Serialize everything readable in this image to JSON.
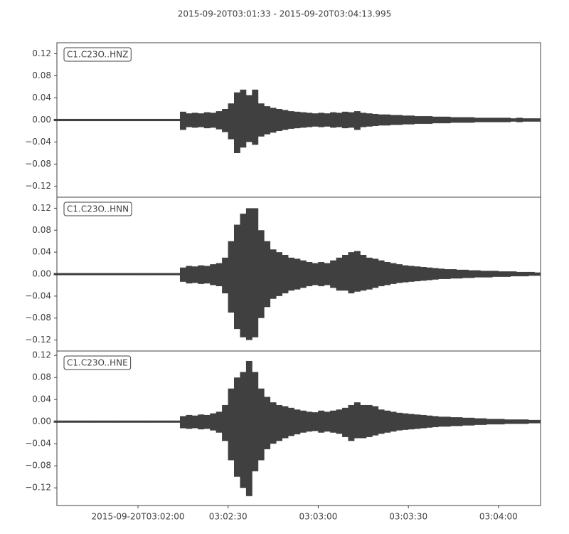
{
  "chart_data": {
    "type": "waveform",
    "title": "2015-09-20T03:01:33  -  2015-09-20T03:04:13.995",
    "color": "#404040",
    "xlim": [
      93,
      253.995
    ],
    "xticks": [
      {
        "value": 120,
        "label": "2015-09-20T03:02:00"
      },
      {
        "value": 150,
        "label": "03:02:30"
      },
      {
        "value": 180,
        "label": "03:03:00"
      },
      {
        "value": 210,
        "label": "03:03:30"
      },
      {
        "value": 240,
        "label": "03:04:00"
      }
    ],
    "yticks": [
      0.12,
      0.08,
      0.04,
      {
        "value": 0,
        "label": "0.00"
      },
      {
        "value": -0.04,
        "label": "−0.04"
      },
      {
        "value": -0.08,
        "label": "−0.08"
      },
      {
        "value": -0.12,
        "label": "−0.12"
      }
    ],
    "x": [
      93,
      95,
      97,
      99,
      101,
      103,
      105,
      107,
      109,
      111,
      113,
      115,
      117,
      119,
      121,
      123,
      125,
      127,
      129,
      131,
      133,
      135,
      137,
      139,
      141,
      143,
      145,
      147,
      149,
      151,
      153,
      155,
      157,
      159,
      161,
      163,
      165,
      167,
      169,
      171,
      173,
      175,
      177,
      179,
      181,
      183,
      185,
      187,
      189,
      191,
      193,
      195,
      197,
      199,
      201,
      203,
      205,
      207,
      209,
      211,
      213,
      215,
      217,
      219,
      221,
      223,
      225,
      227,
      229,
      231,
      233,
      235,
      237,
      239,
      241,
      243,
      245,
      247,
      249,
      251,
      253
    ],
    "traces": [
      {
        "name": "C1.C23O..HNZ",
        "ylim": [
          -0.14,
          0.14
        ],
        "max": [
          0.002,
          0.002,
          0.002,
          0.002,
          0.002,
          0.002,
          0.002,
          0.002,
          0.002,
          0.002,
          0.002,
          0.002,
          0.002,
          0.002,
          0.002,
          0.002,
          0.002,
          0.002,
          0.002,
          0.002,
          0.002,
          0.015,
          0.012,
          0.013,
          0.012,
          0.014,
          0.013,
          0.016,
          0.02,
          0.03,
          0.05,
          0.055,
          0.045,
          0.055,
          0.03,
          0.025,
          0.022,
          0.02,
          0.018,
          0.016,
          0.015,
          0.014,
          0.013,
          0.012,
          0.013,
          0.012,
          0.014,
          0.013,
          0.015,
          0.014,
          0.016,
          0.013,
          0.012,
          0.011,
          0.01,
          0.01,
          0.009,
          0.009,
          0.008,
          0.008,
          0.007,
          0.007,
          0.007,
          0.006,
          0.006,
          0.006,
          0.005,
          0.005,
          0.005,
          0.005,
          0.004,
          0.004,
          0.004,
          0.004,
          0.004,
          0.004,
          0.003,
          0.004,
          0.003,
          0.003,
          0.003
        ],
        "min": [
          -0.002,
          -0.002,
          -0.002,
          -0.002,
          -0.002,
          -0.002,
          -0.002,
          -0.002,
          -0.002,
          -0.002,
          -0.002,
          -0.002,
          -0.002,
          -0.002,
          -0.002,
          -0.002,
          -0.002,
          -0.002,
          -0.002,
          -0.002,
          -0.002,
          -0.018,
          -0.013,
          -0.014,
          -0.013,
          -0.015,
          -0.014,
          -0.017,
          -0.022,
          -0.035,
          -0.06,
          -0.05,
          -0.04,
          -0.045,
          -0.03,
          -0.026,
          -0.023,
          -0.02,
          -0.018,
          -0.016,
          -0.015,
          -0.014,
          -0.013,
          -0.012,
          -0.013,
          -0.012,
          -0.014,
          -0.013,
          -0.015,
          -0.014,
          -0.018,
          -0.013,
          -0.012,
          -0.011,
          -0.01,
          -0.01,
          -0.009,
          -0.009,
          -0.008,
          -0.008,
          -0.007,
          -0.007,
          -0.007,
          -0.006,
          -0.006,
          -0.006,
          -0.005,
          -0.005,
          -0.005,
          -0.005,
          -0.004,
          -0.004,
          -0.004,
          -0.004,
          -0.004,
          -0.004,
          -0.003,
          -0.004,
          -0.003,
          -0.003,
          -0.003
        ]
      },
      {
        "name": "C1.C23O..HNN",
        "ylim": [
          -0.14,
          0.14
        ],
        "max": [
          0.002,
          0.002,
          0.002,
          0.002,
          0.002,
          0.002,
          0.002,
          0.002,
          0.002,
          0.002,
          0.002,
          0.002,
          0.002,
          0.002,
          0.002,
          0.002,
          0.002,
          0.002,
          0.002,
          0.002,
          0.002,
          0.012,
          0.015,
          0.014,
          0.016,
          0.015,
          0.018,
          0.02,
          0.03,
          0.06,
          0.09,
          0.11,
          0.12,
          0.12,
          0.08,
          0.06,
          0.045,
          0.04,
          0.035,
          0.03,
          0.028,
          0.025,
          0.022,
          0.02,
          0.022,
          0.02,
          0.025,
          0.03,
          0.035,
          0.04,
          0.042,
          0.035,
          0.03,
          0.028,
          0.025,
          0.022,
          0.02,
          0.018,
          0.016,
          0.015,
          0.014,
          0.013,
          0.012,
          0.011,
          0.01,
          0.009,
          0.009,
          0.008,
          0.008,
          0.007,
          0.007,
          0.006,
          0.006,
          0.006,
          0.005,
          0.005,
          0.005,
          0.004,
          0.004,
          0.004,
          0.003
        ],
        "min": [
          -0.002,
          -0.002,
          -0.002,
          -0.002,
          -0.002,
          -0.002,
          -0.002,
          -0.002,
          -0.002,
          -0.002,
          -0.002,
          -0.002,
          -0.002,
          -0.002,
          -0.002,
          -0.002,
          -0.002,
          -0.002,
          -0.002,
          -0.002,
          -0.002,
          -0.014,
          -0.017,
          -0.016,
          -0.018,
          -0.017,
          -0.02,
          -0.022,
          -0.035,
          -0.07,
          -0.1,
          -0.115,
          -0.12,
          -0.115,
          -0.08,
          -0.06,
          -0.045,
          -0.04,
          -0.035,
          -0.03,
          -0.028,
          -0.025,
          -0.022,
          -0.02,
          -0.022,
          -0.02,
          -0.025,
          -0.03,
          -0.03,
          -0.035,
          -0.032,
          -0.03,
          -0.028,
          -0.025,
          -0.022,
          -0.02,
          -0.018,
          -0.016,
          -0.015,
          -0.014,
          -0.013,
          -0.012,
          -0.011,
          -0.01,
          -0.009,
          -0.009,
          -0.008,
          -0.008,
          -0.007,
          -0.007,
          -0.006,
          -0.006,
          -0.006,
          -0.005,
          -0.005,
          -0.005,
          -0.004,
          -0.004,
          -0.004,
          -0.003,
          -0.003
        ]
      },
      {
        "name": "C1.C23O..HNE",
        "ylim": [
          -0.152,
          0.128
        ],
        "max": [
          0.002,
          0.002,
          0.002,
          0.002,
          0.002,
          0.002,
          0.002,
          0.002,
          0.002,
          0.002,
          0.002,
          0.002,
          0.002,
          0.002,
          0.002,
          0.002,
          0.002,
          0.002,
          0.002,
          0.002,
          0.002,
          0.01,
          0.012,
          0.011,
          0.013,
          0.012,
          0.015,
          0.018,
          0.03,
          0.06,
          0.08,
          0.09,
          0.11,
          0.09,
          0.06,
          0.045,
          0.035,
          0.03,
          0.028,
          0.025,
          0.022,
          0.02,
          0.018,
          0.017,
          0.02,
          0.018,
          0.02,
          0.022,
          0.025,
          0.03,
          0.035,
          0.03,
          0.03,
          0.028,
          0.022,
          0.02,
          0.018,
          0.016,
          0.015,
          0.014,
          0.013,
          0.012,
          0.011,
          0.01,
          0.009,
          0.009,
          0.008,
          0.008,
          0.007,
          0.007,
          0.006,
          0.006,
          0.005,
          0.005,
          0.005,
          0.004,
          0.004,
          0.004,
          0.004,
          0.003,
          0.003
        ],
        "min": [
          -0.002,
          -0.002,
          -0.002,
          -0.002,
          -0.002,
          -0.002,
          -0.002,
          -0.002,
          -0.002,
          -0.002,
          -0.002,
          -0.002,
          -0.002,
          -0.002,
          -0.002,
          -0.002,
          -0.002,
          -0.002,
          -0.002,
          -0.002,
          -0.002,
          -0.012,
          -0.013,
          -0.012,
          -0.014,
          -0.013,
          -0.016,
          -0.02,
          -0.035,
          -0.07,
          -0.1,
          -0.12,
          -0.135,
          -0.09,
          -0.07,
          -0.05,
          -0.04,
          -0.035,
          -0.03,
          -0.026,
          -0.023,
          -0.02,
          -0.018,
          -0.017,
          -0.02,
          -0.018,
          -0.02,
          -0.022,
          -0.028,
          -0.035,
          -0.03,
          -0.03,
          -0.028,
          -0.025,
          -0.022,
          -0.02,
          -0.018,
          -0.016,
          -0.015,
          -0.014,
          -0.013,
          -0.012,
          -0.011,
          -0.01,
          -0.009,
          -0.009,
          -0.008,
          -0.008,
          -0.007,
          -0.007,
          -0.006,
          -0.006,
          -0.005,
          -0.005,
          -0.005,
          -0.004,
          -0.004,
          -0.004,
          -0.004,
          -0.003,
          -0.003
        ]
      }
    ]
  }
}
